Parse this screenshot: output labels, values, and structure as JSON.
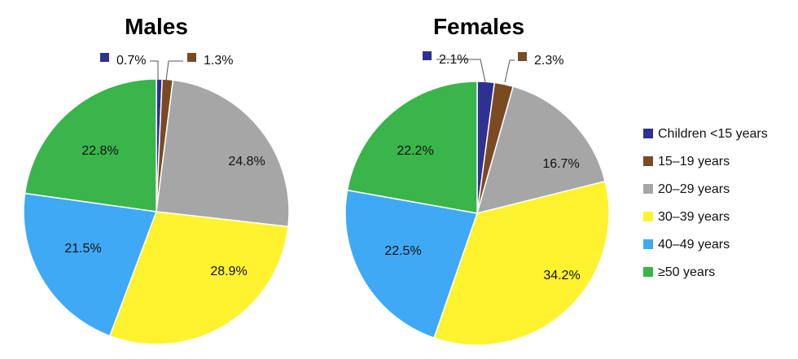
{
  "chart_data": [
    {
      "type": "pie",
      "title": "Males",
      "categories": [
        "Children <15 years",
        "15–19 years",
        "20–29 years",
        "30–39 years",
        "40–49 years",
        "≥50 years"
      ],
      "values": [
        0.7,
        1.3,
        24.8,
        28.9,
        21.5,
        22.8
      ],
      "labels": [
        "0.7%",
        "1.3%",
        "24.8%",
        "28.9%",
        "21.5%",
        "22.8%"
      ]
    },
    {
      "type": "pie",
      "title": "Females",
      "categories": [
        "Children <15 years",
        "15–19 years",
        "20–29 years",
        "30–39 years",
        "40–49 years",
        "≥50 years"
      ],
      "values": [
        2.1,
        2.3,
        16.7,
        34.2,
        22.5,
        22.2
      ],
      "labels": [
        "2.1%",
        "2.3%",
        "16.7%",
        "34.2%",
        "22.5%",
        "22.2%"
      ]
    }
  ],
  "legend": {
    "placement": "right",
    "items": [
      {
        "label": "Children <15 years",
        "color": "#2E3192"
      },
      {
        "label": "15–19 years",
        "color": "#7A4A23"
      },
      {
        "label": "20–29 years",
        "color": "#A6A6A6"
      },
      {
        "label": "30–39 years",
        "color": "#FFF22E"
      },
      {
        "label": "40–49 years",
        "color": "#3FA9F5"
      },
      {
        "label": "≥50 years",
        "color": "#39B54A"
      }
    ]
  }
}
